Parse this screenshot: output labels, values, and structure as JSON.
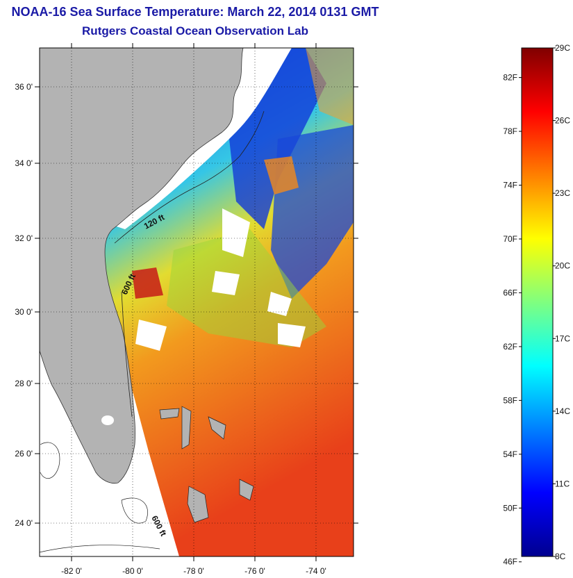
{
  "title": {
    "line1": "NOAA-16 Sea Surface Temperature:  March 22, 2014 0131 GMT",
    "line2": "Rutgers Coastal Ocean Observation Lab"
  },
  "map": {
    "lat_ticks": [
      "36 0'",
      "34 0'",
      "32 0'",
      "30 0'",
      "28 0'",
      "26 0'",
      "24 0'"
    ],
    "lon_ticks": [
      "-82 0'",
      "-80 0'",
      "-78 0'",
      "-76 0'",
      "-74 0'"
    ],
    "contours": [
      "120 ft",
      "600 ft",
      "600 ft"
    ],
    "colors": {
      "land": "#b3b3b3",
      "nodata": "#ffffff",
      "frame": "#000000"
    }
  },
  "colorbar": {
    "fahrenheit": [
      "82F",
      "78F",
      "74F",
      "70F",
      "66F",
      "62F",
      "58F",
      "54F",
      "50F",
      "46F"
    ],
    "celsius": [
      "29C",
      "26C",
      "23C",
      "20C",
      "17C",
      "14C",
      "11C",
      "8C"
    ],
    "min_c": 8,
    "max_c": 29,
    "colormap": "jet"
  }
}
